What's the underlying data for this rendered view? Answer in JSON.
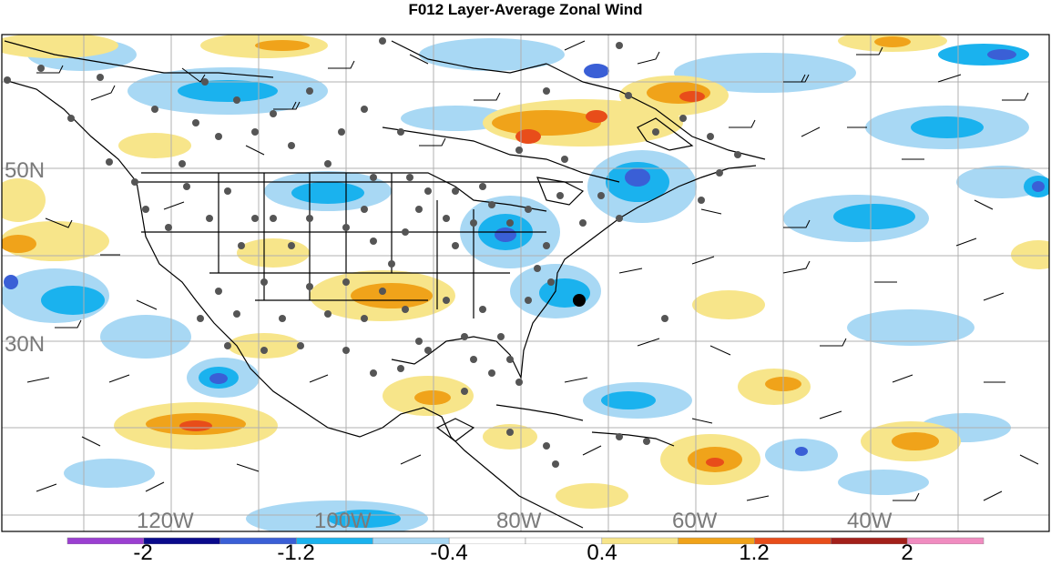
{
  "title": "F012 Layer-Average Zonal Wind",
  "lat_labels": [
    "50N",
    "30N"
  ],
  "lon_labels": [
    "120W",
    "100W",
    "80W",
    "60W",
    "40W"
  ],
  "colorbar": {
    "colors": [
      "#9b3fd1",
      "#0a0a8c",
      "#3a5fd6",
      "#1ab2ee",
      "#a8d8f4",
      "#ffffff",
      "#ffffff",
      "#f7e58a",
      "#f0a31a",
      "#e84d1a",
      "#a3201a",
      "#f08cc0"
    ],
    "tick_labels": [
      "-2",
      "-1.2",
      "-0.4",
      "0.4",
      "1.2",
      "2"
    ]
  }
}
